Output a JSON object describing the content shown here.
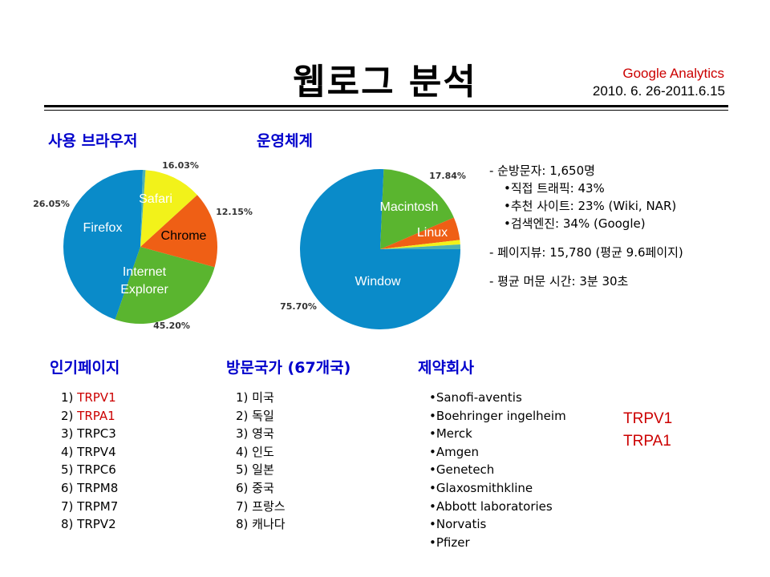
{
  "title": "웹로그 분석",
  "source": {
    "name": "Google Analytics",
    "range": "2010. 6. 26-2011.6.15"
  },
  "headings": {
    "browser": "사용 브라우저",
    "os": "운영체계",
    "pages": "인기페이지",
    "countries": "방문국가 (67개국)",
    "pharma": "제약회사"
  },
  "colors": {
    "blue": "#0a8bc9",
    "green": "#5ab52f",
    "orange": "#ef5f15",
    "yellow": "#f2f21a",
    "teal": "#4fb2b0"
  },
  "chart_data": [
    {
      "type": "pie",
      "title": "사용 브라우저",
      "slices": [
        {
          "label": "Internet Explorer",
          "value": 45.2,
          "value_label": "45.20%",
          "color": "#0a8bc9"
        },
        {
          "label": "Firefox",
          "value": 26.05,
          "value_label": "26.05%",
          "color": "#5ab52f"
        },
        {
          "label": "Safari",
          "value": 16.03,
          "value_label": "16.03%",
          "color": "#ef5f15"
        },
        {
          "label": "Chrome",
          "value": 12.15,
          "value_label": "12.15%",
          "color": "#f2f21a"
        },
        {
          "label": "",
          "value": 0.57,
          "value_label": "",
          "color": "#4fb2b0"
        }
      ]
    },
    {
      "type": "pie",
      "title": "운영체계",
      "slices": [
        {
          "label": "Window",
          "value": 75.7,
          "value_label": "75.70%",
          "color": "#0a8bc9"
        },
        {
          "label": "Macintosh",
          "value": 17.84,
          "value_label": "17.84%",
          "color": "#5ab52f"
        },
        {
          "label": "Linux",
          "value": 4.6,
          "value_label": "",
          "color": "#ef5f15"
        },
        {
          "label": "",
          "value": 0.9,
          "value_label": "",
          "color": "#f2f21a"
        },
        {
          "label": "",
          "value": 0.96,
          "value_label": "",
          "color": "#4fb2b0"
        }
      ]
    }
  ],
  "stats": {
    "visitors": "- 순방문자: 1,650명",
    "direct": "•직접 트래픽: 43%",
    "referral": "•추천 사이트: 23% (Wiki, NAR)",
    "search": "•검색엔진:  34% (Google)",
    "pageviews": "- 페이지뷰: 15,780 (평균 9.6페이지)",
    "avg_time": "- 평균 머문 시간: 3분 30초"
  },
  "popular_pages": [
    {
      "num": "1) ",
      "name": "TRPV1",
      "highlight": true
    },
    {
      "num": "2) ",
      "name": "TRPA1",
      "highlight": true
    },
    {
      "num": "3) ",
      "name": "TRPC3",
      "highlight": false
    },
    {
      "num": "4) ",
      "name": "TRPV4",
      "highlight": false
    },
    {
      "num": "5) ",
      "name": "TRPC6",
      "highlight": false
    },
    {
      "num": "6) ",
      "name": "TRPM8",
      "highlight": false
    },
    {
      "num": "7) ",
      "name": "TRPM7",
      "highlight": false
    },
    {
      "num": "8) ",
      "name": "TRPV2",
      "highlight": false
    }
  ],
  "countries": [
    "1) 미국",
    "2) 독일",
    "3) 영국",
    "4) 인도",
    "5) 일본",
    "6) 중국",
    "7) 프랑스",
    "8) 캐나다"
  ],
  "pharma": [
    "•Sanofi-aventis",
    "•Boehringer ingelheim",
    "•Merck",
    "•Amgen",
    "•Genetech",
    "•Glaxosmithkline",
    "•Abbott laboratories",
    "•Norvatis",
    "•Pfizer"
  ],
  "pharma_targets": [
    "TRPV1",
    "TRPA1"
  ]
}
